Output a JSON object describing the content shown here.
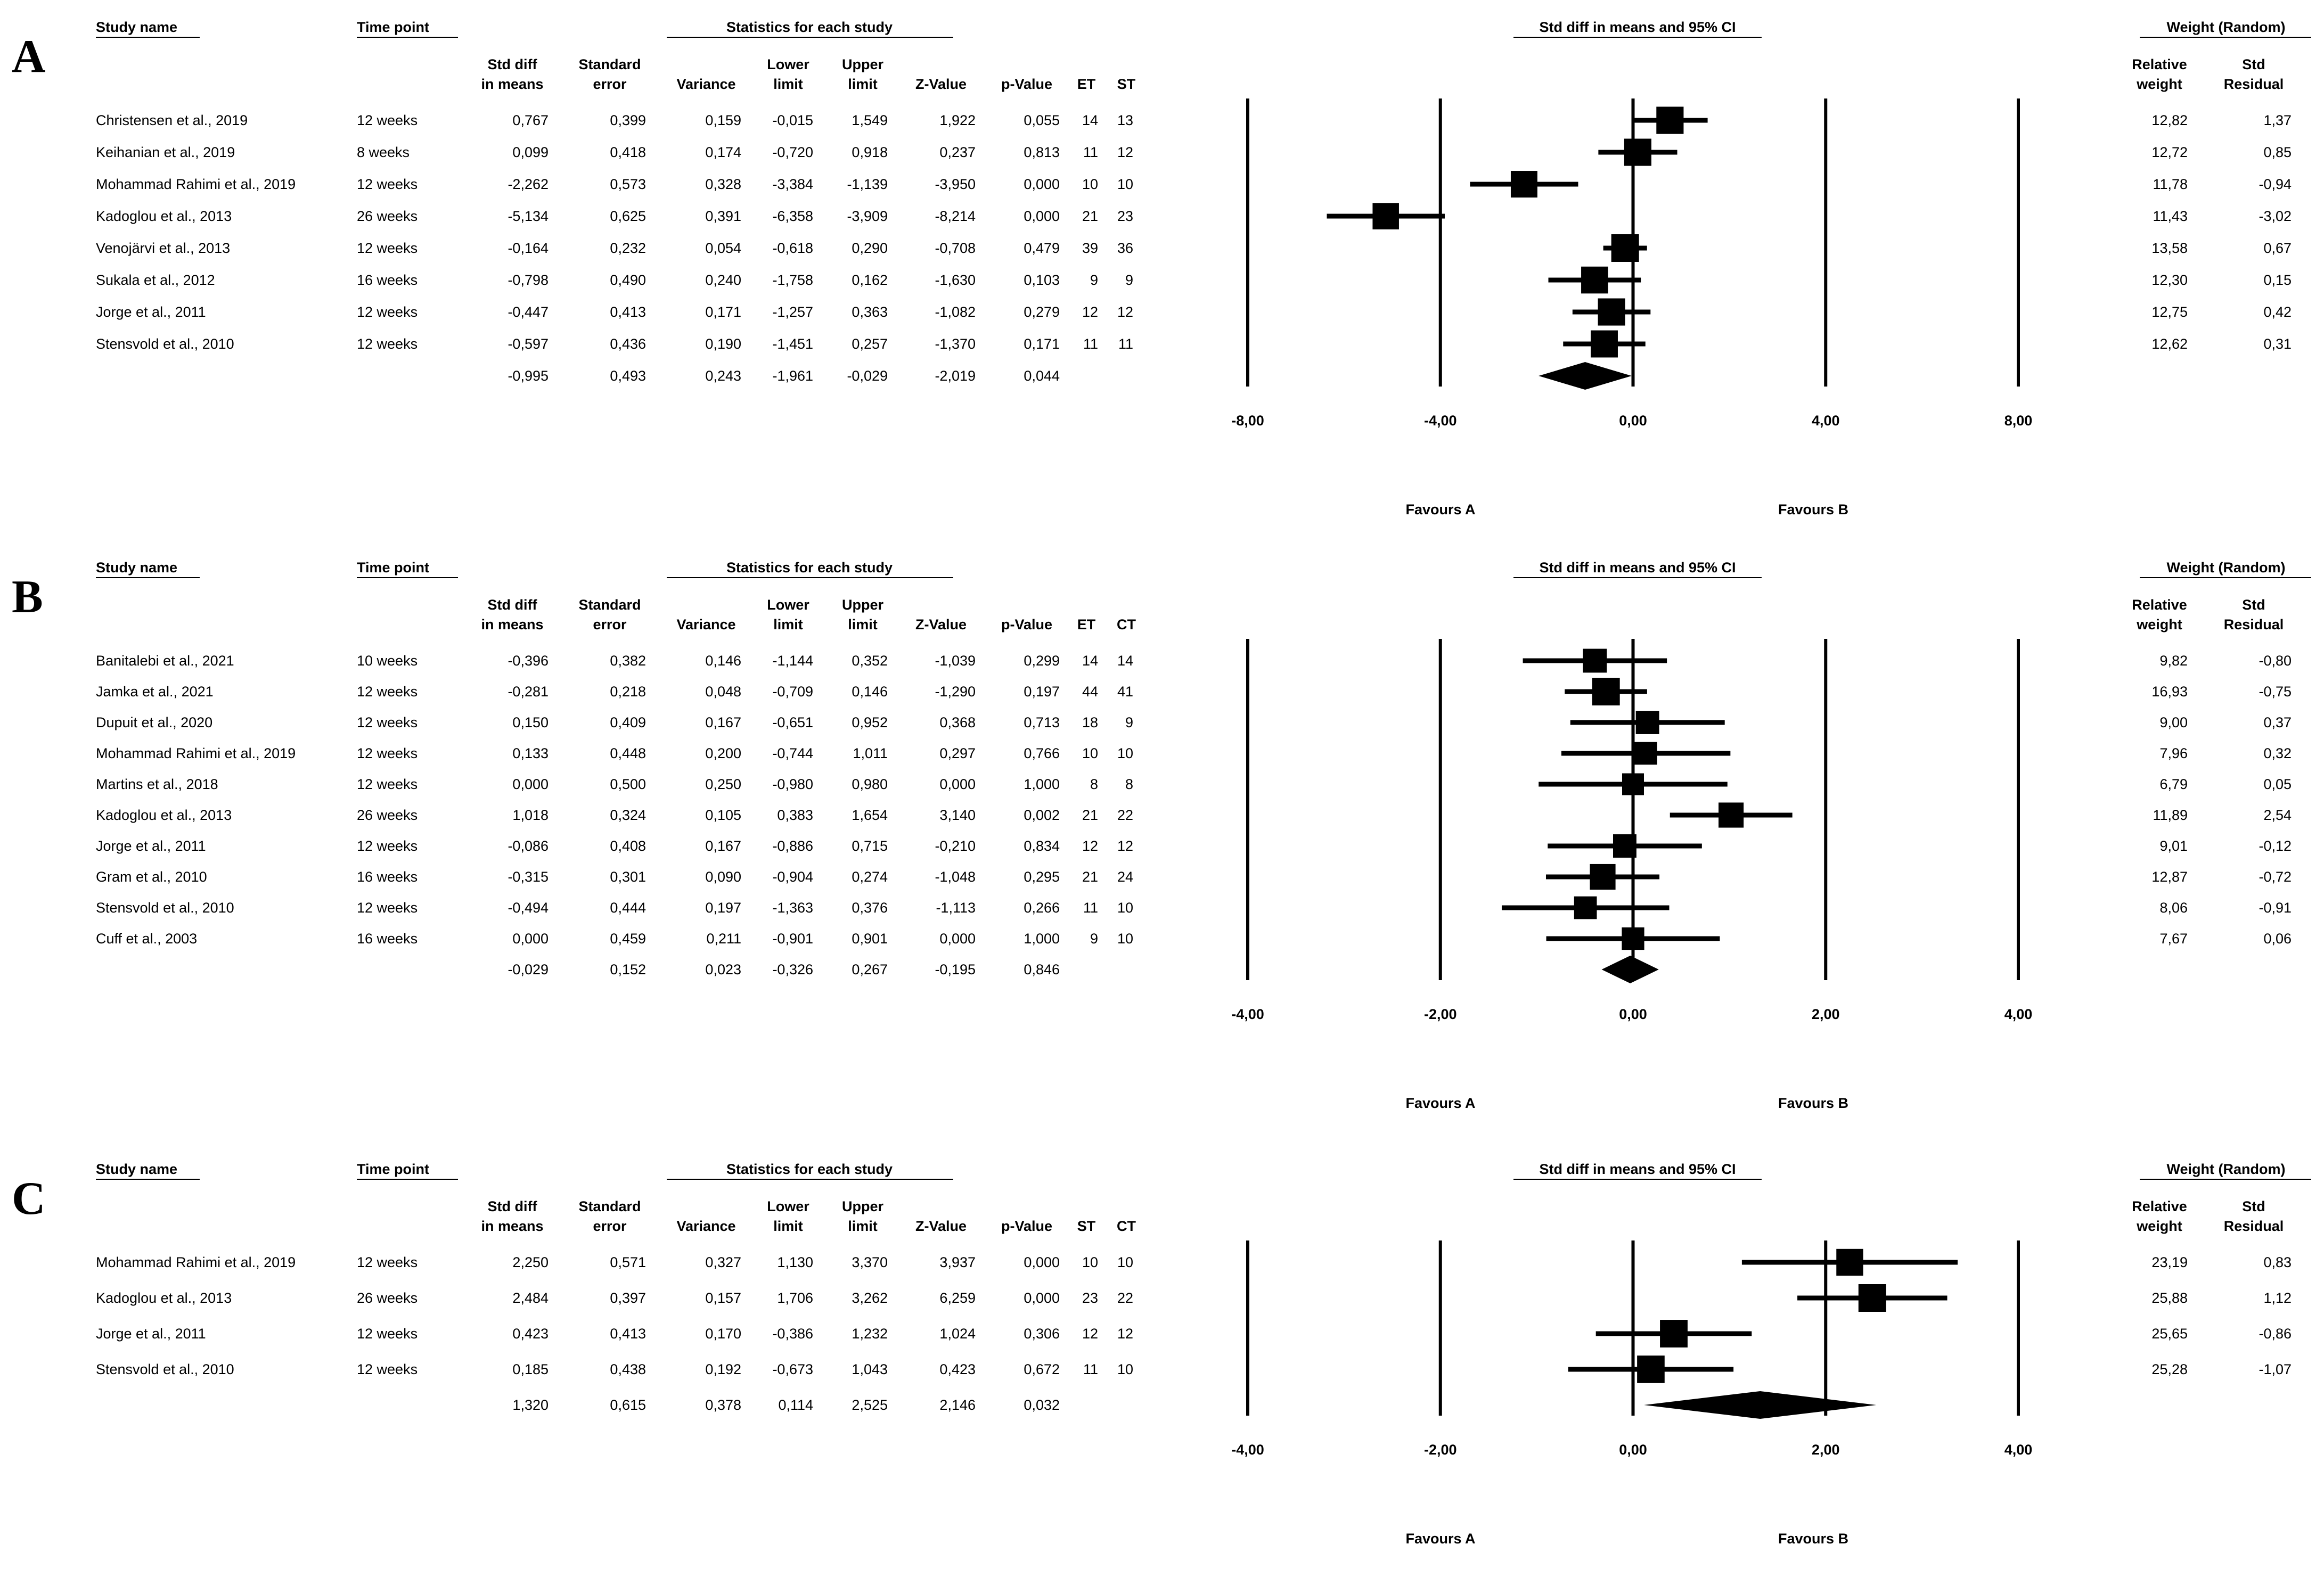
{
  "columns": {
    "study": "Study name",
    "time": "Time point",
    "stats_header": "Statistics for each study",
    "std_diff_1": "Std diff",
    "std_diff_2": "in means",
    "se_1": "Standard",
    "se_2": "error",
    "variance": "Variance",
    "lower_1": "Lower",
    "lower_2": "limit",
    "upper_1": "Upper",
    "upper_2": "limit",
    "z": "Z-Value",
    "p": "p-Value",
    "plot_header": "Std diff in means and 95% CI",
    "weight_header": "Weight (Random)",
    "relw_1": "Relative",
    "relw_2": "weight",
    "res_1": "Std",
    "res_2": "Residual",
    "favours_a": "Favours A",
    "favours_b": "Favours B"
  },
  "chart_data": [
    {
      "panel": "A",
      "type": "forest",
      "n1_label": "ET",
      "n2_label": "ST",
      "xlim": [
        -8,
        8
      ],
      "ticks": [
        "-8,00",
        "-4,00",
        "0,00",
        "4,00",
        "8,00"
      ],
      "tick_values": [
        -8,
        -4,
        0,
        4,
        8
      ],
      "studies": [
        {
          "name": "Christensen et al., 2019",
          "time": "12 weeks",
          "smd": "0,767",
          "se": "0,399",
          "var": "0,159",
          "lower": "-0,015",
          "upper": "1,549",
          "z": "1,922",
          "p": "0,055",
          "n1": "14",
          "n2": "13",
          "relw": "12,82",
          "res": "1,37",
          "v_smd": 0.767,
          "v_lo": -0.015,
          "v_hi": 1.549,
          "v_w": 12.82
        },
        {
          "name": "Keihanian et al., 2019",
          "time": "8 weeks",
          "smd": "0,099",
          "se": "0,418",
          "var": "0,174",
          "lower": "-0,720",
          "upper": "0,918",
          "z": "0,237",
          "p": "0,813",
          "n1": "11",
          "n2": "12",
          "relw": "12,72",
          "res": "0,85",
          "v_smd": 0.099,
          "v_lo": -0.72,
          "v_hi": 0.918,
          "v_w": 12.72
        },
        {
          "name": "Mohammad Rahimi et al., 2019",
          "time": "12 weeks",
          "smd": "-2,262",
          "se": "0,573",
          "var": "0,328",
          "lower": "-3,384",
          "upper": "-1,139",
          "z": "-3,950",
          "p": "0,000",
          "n1": "10",
          "n2": "10",
          "relw": "11,78",
          "res": "-0,94",
          "v_smd": -2.262,
          "v_lo": -3.384,
          "v_hi": -1.139,
          "v_w": 11.78
        },
        {
          "name": "Kadoglou et al., 2013",
          "time": "26 weeks",
          "smd": "-5,134",
          "se": "0,625",
          "var": "0,391",
          "lower": "-6,358",
          "upper": "-3,909",
          "z": "-8,214",
          "p": "0,000",
          "n1": "21",
          "n2": "23",
          "relw": "11,43",
          "res": "-3,02",
          "v_smd": -5.134,
          "v_lo": -6.358,
          "v_hi": -3.909,
          "v_w": 11.43
        },
        {
          "name": "Venojärvi et al., 2013",
          "time": "12 weeks",
          "smd": "-0,164",
          "se": "0,232",
          "var": "0,054",
          "lower": "-0,618",
          "upper": "0,290",
          "z": "-0,708",
          "p": "0,479",
          "n1": "39",
          "n2": "36",
          "relw": "13,58",
          "res": "0,67",
          "v_smd": -0.164,
          "v_lo": -0.618,
          "v_hi": 0.29,
          "v_w": 13.58
        },
        {
          "name": "Sukala et al., 2012",
          "time": "16 weeks",
          "smd": "-0,798",
          "se": "0,490",
          "var": "0,240",
          "lower": "-1,758",
          "upper": "0,162",
          "z": "-1,630",
          "p": "0,103",
          "n1": "9",
          "n2": "9",
          "relw": "12,30",
          "res": "0,15",
          "v_smd": -0.798,
          "v_lo": -1.758,
          "v_hi": 0.162,
          "v_w": 12.3
        },
        {
          "name": "Jorge et al., 2011",
          "time": "12 weeks",
          "smd": "-0,447",
          "se": "0,413",
          "var": "0,171",
          "lower": "-1,257",
          "upper": "0,363",
          "z": "-1,082",
          "p": "0,279",
          "n1": "12",
          "n2": "12",
          "relw": "12,75",
          "res": "0,42",
          "v_smd": -0.447,
          "v_lo": -1.257,
          "v_hi": 0.363,
          "v_w": 12.75
        },
        {
          "name": "Stensvold et al., 2010",
          "time": "12 weeks",
          "smd": "-0,597",
          "se": "0,436",
          "var": "0,190",
          "lower": "-1,451",
          "upper": "0,257",
          "z": "-1,370",
          "p": "0,171",
          "n1": "11",
          "n2": "11",
          "relw": "12,62",
          "res": "0,31",
          "v_smd": -0.597,
          "v_lo": -1.451,
          "v_hi": 0.257,
          "v_w": 12.62
        }
      ],
      "summary": {
        "smd": "-0,995",
        "se": "0,493",
        "var": "0,243",
        "lower": "-1,961",
        "upper": "-0,029",
        "z": "-2,019",
        "p": "0,044",
        "v_smd": -0.995,
        "v_lo": -1.961,
        "v_hi": -0.029
      }
    },
    {
      "panel": "B",
      "type": "forest",
      "n1_label": "ET",
      "n2_label": "CT",
      "xlim": [
        -4,
        4
      ],
      "ticks": [
        "-4,00",
        "-2,00",
        "0,00",
        "2,00",
        "4,00"
      ],
      "tick_values": [
        -4,
        -2,
        0,
        2,
        4
      ],
      "studies": [
        {
          "name": "Banitalebi et al., 2021",
          "time": "10 weeks",
          "smd": "-0,396",
          "se": "0,382",
          "var": "0,146",
          "lower": "-1,144",
          "upper": "0,352",
          "z": "-1,039",
          "p": "0,299",
          "n1": "14",
          "n2": "14",
          "relw": "9,82",
          "res": "-0,80",
          "v_smd": -0.396,
          "v_lo": -1.144,
          "v_hi": 0.352,
          "v_w": 9.82
        },
        {
          "name": "Jamka et al., 2021",
          "time": "12 weeks",
          "smd": "-0,281",
          "se": "0,218",
          "var": "0,048",
          "lower": "-0,709",
          "upper": "0,146",
          "z": "-1,290",
          "p": "0,197",
          "n1": "44",
          "n2": "41",
          "relw": "16,93",
          "res": "-0,75",
          "v_smd": -0.281,
          "v_lo": -0.709,
          "v_hi": 0.146,
          "v_w": 16.93
        },
        {
          "name": "Dupuit et al., 2020",
          "time": "12 weeks",
          "smd": "0,150",
          "se": "0,409",
          "var": "0,167",
          "lower": "-0,651",
          "upper": "0,952",
          "z": "0,368",
          "p": "0,713",
          "n1": "18",
          "n2": "9",
          "relw": "9,00",
          "res": "0,37",
          "v_smd": 0.15,
          "v_lo": -0.651,
          "v_hi": 0.952,
          "v_w": 9.0
        },
        {
          "name": "Mohammad Rahimi et al., 2019",
          "time": "12 weeks",
          "smd": "0,133",
          "se": "0,448",
          "var": "0,200",
          "lower": "-0,744",
          "upper": "1,011",
          "z": "0,297",
          "p": "0,766",
          "n1": "10",
          "n2": "10",
          "relw": "7,96",
          "res": "0,32",
          "v_smd": 0.133,
          "v_lo": -0.744,
          "v_hi": 1.011,
          "v_w": 7.96
        },
        {
          "name": "Martins et al., 2018",
          "time": "12 weeks",
          "smd": "0,000",
          "se": "0,500",
          "var": "0,250",
          "lower": "-0,980",
          "upper": "0,980",
          "z": "0,000",
          "p": "1,000",
          "n1": "8",
          "n2": "8",
          "relw": "6,79",
          "res": "0,05",
          "v_smd": 0.0,
          "v_lo": -0.98,
          "v_hi": 0.98,
          "v_w": 6.79
        },
        {
          "name": "Kadoglou et al., 2013",
          "time": "26 weeks",
          "smd": "1,018",
          "se": "0,324",
          "var": "0,105",
          "lower": "0,383",
          "upper": "1,654",
          "z": "3,140",
          "p": "0,002",
          "n1": "21",
          "n2": "22",
          "relw": "11,89",
          "res": "2,54",
          "v_smd": 1.018,
          "v_lo": 0.383,
          "v_hi": 1.654,
          "v_w": 11.89
        },
        {
          "name": "Jorge et al., 2011",
          "time": "12 weeks",
          "smd": "-0,086",
          "se": "0,408",
          "var": "0,167",
          "lower": "-0,886",
          "upper": "0,715",
          "z": "-0,210",
          "p": "0,834",
          "n1": "12",
          "n2": "12",
          "relw": "9,01",
          "res": "-0,12",
          "v_smd": -0.086,
          "v_lo": -0.886,
          "v_hi": 0.715,
          "v_w": 9.01
        },
        {
          "name": "Gram et al., 2010",
          "time": "16 weeks",
          "smd": "-0,315",
          "se": "0,301",
          "var": "0,090",
          "lower": "-0,904",
          "upper": "0,274",
          "z": "-1,048",
          "p": "0,295",
          "n1": "21",
          "n2": "24",
          "relw": "12,87",
          "res": "-0,72",
          "v_smd": -0.315,
          "v_lo": -0.904,
          "v_hi": 0.274,
          "v_w": 12.87
        },
        {
          "name": "Stensvold et al., 2010",
          "time": "12 weeks",
          "smd": "-0,494",
          "se": "0,444",
          "var": "0,197",
          "lower": "-1,363",
          "upper": "0,376",
          "z": "-1,113",
          "p": "0,266",
          "n1": "11",
          "n2": "10",
          "relw": "8,06",
          "res": "-0,91",
          "v_smd": -0.494,
          "v_lo": -1.363,
          "v_hi": 0.376,
          "v_w": 8.06
        },
        {
          "name": "Cuff et al., 2003",
          "time": "16 weeks",
          "smd": "0,000",
          "se": "0,459",
          "var": "0,211",
          "lower": "-0,901",
          "upper": "0,901",
          "z": "0,000",
          "p": "1,000",
          "n1": "9",
          "n2": "10",
          "relw": "7,67",
          "res": "0,06",
          "v_smd": 0.0,
          "v_lo": -0.901,
          "v_hi": 0.901,
          "v_w": 7.67
        }
      ],
      "summary": {
        "smd": "-0,029",
        "se": "0,152",
        "var": "0,023",
        "lower": "-0,326",
        "upper": "0,267",
        "z": "-0,195",
        "p": "0,846",
        "v_smd": -0.029,
        "v_lo": -0.326,
        "v_hi": 0.267
      }
    },
    {
      "panel": "C",
      "type": "forest",
      "n1_label": "ST",
      "n2_label": "CT",
      "xlim": [
        -4,
        4
      ],
      "ticks": [
        "-4,00",
        "-2,00",
        "0,00",
        "2,00",
        "4,00"
      ],
      "tick_values": [
        -4,
        -2,
        0,
        2,
        4
      ],
      "studies": [
        {
          "name": "Mohammad Rahimi et al., 2019",
          "time": "12 weeks",
          "smd": "2,250",
          "se": "0,571",
          "var": "0,327",
          "lower": "1,130",
          "upper": "3,370",
          "z": "3,937",
          "p": "0,000",
          "n1": "10",
          "n2": "10",
          "relw": "23,19",
          "res": "0,83",
          "v_smd": 2.25,
          "v_lo": 1.13,
          "v_hi": 3.37,
          "v_w": 23.19
        },
        {
          "name": "Kadoglou et al., 2013",
          "time": "26 weeks",
          "smd": "2,484",
          "se": "0,397",
          "var": "0,157",
          "lower": "1,706",
          "upper": "3,262",
          "z": "6,259",
          "p": "0,000",
          "n1": "23",
          "n2": "22",
          "relw": "25,88",
          "res": "1,12",
          "v_smd": 2.484,
          "v_lo": 1.706,
          "v_hi": 3.262,
          "v_w": 25.88
        },
        {
          "name": "Jorge et al., 2011",
          "time": "12 weeks",
          "smd": "0,423",
          "se": "0,413",
          "var": "0,170",
          "lower": "-0,386",
          "upper": "1,232",
          "z": "1,024",
          "p": "0,306",
          "n1": "12",
          "n2": "12",
          "relw": "25,65",
          "res": "-0,86",
          "v_smd": 0.423,
          "v_lo": -0.386,
          "v_hi": 1.232,
          "v_w": 25.65
        },
        {
          "name": "Stensvold et al., 2010",
          "time": "12 weeks",
          "smd": "0,185",
          "se": "0,438",
          "var": "0,192",
          "lower": "-0,673",
          "upper": "1,043",
          "z": "0,423",
          "p": "0,672",
          "n1": "11",
          "n2": "10",
          "relw": "25,28",
          "res": "-1,07",
          "v_smd": 0.185,
          "v_lo": -0.673,
          "v_hi": 1.043,
          "v_w": 25.28
        }
      ],
      "summary": {
        "smd": "1,320",
        "se": "0,615",
        "var": "0,378",
        "lower": "0,114",
        "upper": "2,525",
        "z": "2,146",
        "p": "0,032",
        "v_smd": 1.32,
        "v_lo": 0.114,
        "v_hi": 2.525
      }
    }
  ]
}
